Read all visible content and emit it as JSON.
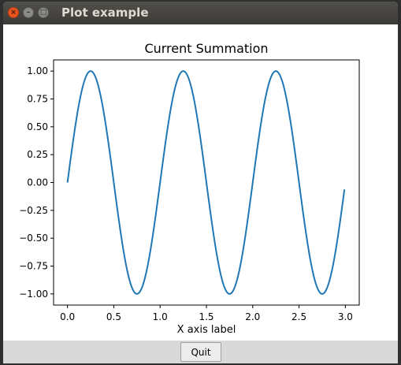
{
  "window": {
    "title": "Plot example",
    "close_glyph": "×",
    "min_glyph": "–",
    "max_glyph": "□"
  },
  "toolbar": {
    "quit_label": "Quit"
  },
  "chart_data": {
    "type": "line",
    "title": "Current Summation",
    "xlabel": "X axis label",
    "ylabel": "",
    "xlim": [
      -0.15,
      3.15
    ],
    "ylim": [
      -1.1,
      1.1
    ],
    "x_ticks": [
      0.0,
      0.5,
      1.0,
      1.5,
      2.0,
      2.5,
      3.0
    ],
    "x_tick_labels": [
      "0.0",
      "0.5",
      "1.0",
      "1.5",
      "2.0",
      "2.5",
      "3.0"
    ],
    "y_ticks": [
      1.0,
      0.75,
      0.5,
      0.25,
      0.0,
      -0.25,
      -0.5,
      -0.75,
      -1.0
    ],
    "y_tick_labels": [
      "1.00",
      "0.75",
      "0.50",
      "0.25",
      "0.00",
      "−0.25",
      "−0.50",
      "−0.75",
      "−1.00"
    ],
    "grid": false,
    "series": [
      {
        "color": "#1f77b4",
        "function": "sin(2*pi*x)",
        "x_start": 0.0,
        "x_end": 2.99,
        "x_step": 0.01
      }
    ]
  }
}
